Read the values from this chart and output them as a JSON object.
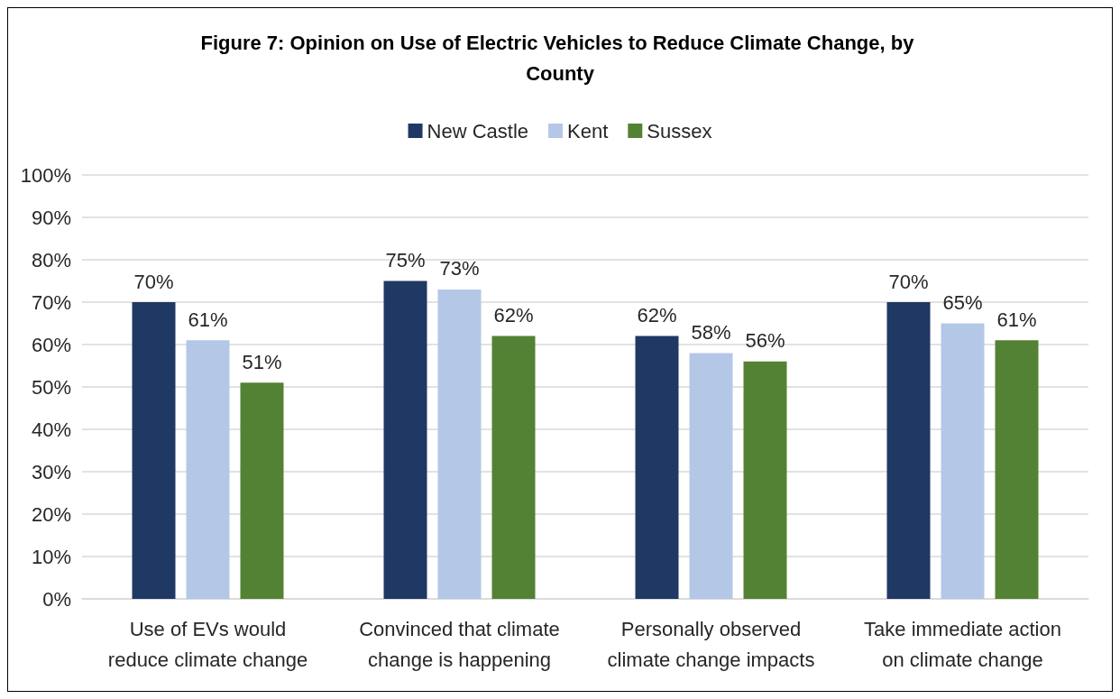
{
  "chart_data": {
    "type": "bar",
    "title": "Figure 7: Opinion on Use of Electric Vehicles to Reduce Climate Change, by County",
    "categories": [
      "Use of EVs would\nreduce climate change",
      "Convinced that climate\nchange is happening",
      "Personally observed\nclimate change impacts",
      "Take immediate action\non climate change"
    ],
    "series": [
      {
        "name": "New Castle",
        "color": "#203864",
        "values": [
          70,
          75,
          62,
          70
        ],
        "value_labels": [
          "70%",
          "75%",
          "62%",
          "70%"
        ]
      },
      {
        "name": "Kent",
        "color": "#b4c7e7",
        "values": [
          61,
          73,
          58,
          65
        ],
        "value_labels": [
          "61%",
          "73%",
          "58%",
          "65%"
        ]
      },
      {
        "name": "Sussex",
        "color": "#548235",
        "values": [
          51,
          62,
          56,
          61
        ],
        "value_labels": [
          "51%",
          "62%",
          "56%",
          "61%"
        ]
      }
    ],
    "ylim": [
      0,
      100
    ],
    "yticks": [
      {
        "value": 0,
        "label": "0%"
      },
      {
        "value": 10,
        "label": "10%"
      },
      {
        "value": 20,
        "label": "20%"
      },
      {
        "value": 30,
        "label": "30%"
      },
      {
        "value": 40,
        "label": "40%"
      },
      {
        "value": 50,
        "label": "50%"
      },
      {
        "value": 60,
        "label": "60%"
      },
      {
        "value": 70,
        "label": "70%"
      },
      {
        "value": 80,
        "label": "80%"
      },
      {
        "value": 90,
        "label": "90%"
      },
      {
        "value": 100,
        "label": "100%"
      }
    ],
    "grid": "y",
    "legend": "top"
  }
}
